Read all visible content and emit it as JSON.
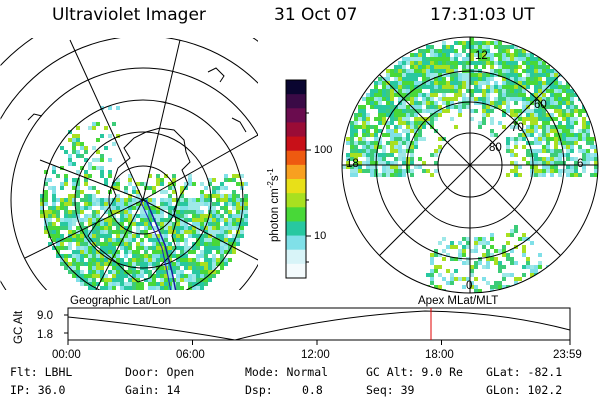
{
  "header": {
    "instrument": "Ultraviolet Imager",
    "date": "31 Oct 07",
    "time": "17:31:03 UT"
  },
  "colorbar": {
    "unit_label": "photon cm",
    "unit_exp1": "-2",
    "unit_mid": "s",
    "unit_exp2": "-1",
    "tick_100": "100",
    "tick_10": "10",
    "colors": [
      "#0a0530",
      "#3a0a46",
      "#6a0c4e",
      "#9a0c36",
      "#c81018",
      "#ee5a10",
      "#f8a020",
      "#e8e018",
      "#a8e020",
      "#48d838",
      "#28c8a0",
      "#80e0e8",
      "#d8f4f8",
      "#f4fbfd"
    ]
  },
  "left_panel": {
    "label": "Geographic Lat/Lon"
  },
  "right_panel": {
    "label": "Apex  MLat/MLT",
    "mlt_top": "12",
    "mlt_left": "18",
    "mlt_right": "6",
    "mlt_bottom": "0",
    "lat_60": "60",
    "lat_70": "70",
    "lat_80": "80"
  },
  "alt_plot": {
    "axis_label": "GC Alt",
    "y_top": "9.0",
    "y_bottom": "1.8",
    "x_ticks": [
      "00:00",
      "06:00",
      "12:00",
      "18:00",
      "23:59"
    ],
    "marker_color": "#e00000"
  },
  "info": {
    "flt": "Flt: LBHL",
    "ip": "IP: 36.0",
    "door": "Door: Open",
    "gain": "Gain: 14",
    "mode": "Mode: Normal",
    "dsp_label": "Dsp:",
    "dsp_value": "0.8",
    "gcalt": "GC Alt: 9.0 Re",
    "seq": "Seq: 39",
    "glat": "GLat: -82.1",
    "glon": "GLon: 102.2"
  }
}
